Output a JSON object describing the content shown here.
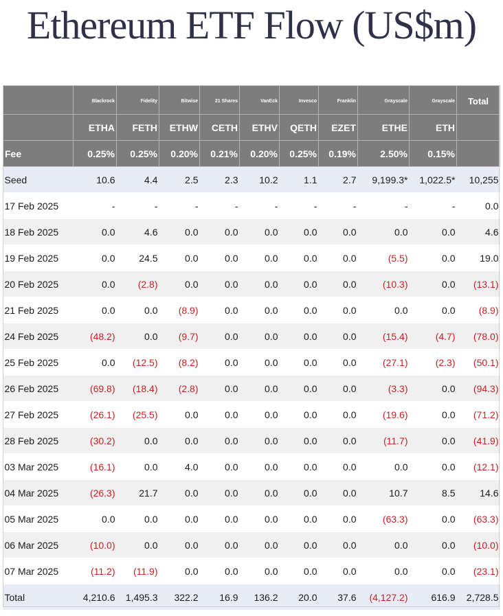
{
  "title": "Ethereum ETF Flow (US$m)",
  "colors": {
    "header_bg": "#7d7d7d",
    "seed_bg": "#e8ecf6",
    "stripe_bg": "#f0f0f0",
    "negative": "#cc1f1f",
    "title": "#2e3148"
  },
  "header": {
    "issuers": [
      "Blackrock",
      "Fidelity",
      "Bitwise",
      "21 Shares",
      "VanEck",
      "Invesco",
      "Franklin",
      "Grayscale",
      "Grayscale"
    ],
    "total_label": "Total",
    "tickers": [
      "ETHA",
      "FETH",
      "ETHW",
      "CETH",
      "ETHV",
      "QETH",
      "EZET",
      "ETHE",
      "ETH"
    ],
    "fee_label": "Fee",
    "fees": [
      "0.25%",
      "0.25%",
      "0.20%",
      "0.21%",
      "0.20%",
      "0.25%",
      "0.19%",
      "2.50%",
      "0.15%"
    ]
  },
  "seed": {
    "label": "Seed",
    "values": [
      "10.6",
      "4.4",
      "2.5",
      "2.3",
      "10.2",
      "1.1",
      "2.7",
      "9,199.3*",
      "1,022.5*",
      "10,255"
    ]
  },
  "rows": [
    {
      "date": "17 Feb 2025",
      "values": [
        "-",
        "-",
        "-",
        "-",
        "-",
        "-",
        "-",
        "-",
        "-",
        "0.0"
      ]
    },
    {
      "date": "18 Feb 2025",
      "values": [
        "0.0",
        "4.6",
        "0.0",
        "0.0",
        "0.0",
        "0.0",
        "0.0",
        "0.0",
        "0.0",
        "4.6"
      ]
    },
    {
      "date": "19 Feb 2025",
      "values": [
        "0.0",
        "24.5",
        "0.0",
        "0.0",
        "0.0",
        "0.0",
        "0.0",
        "(5.5)",
        "0.0",
        "19.0"
      ]
    },
    {
      "date": "20 Feb 2025",
      "values": [
        "0.0",
        "(2.8)",
        "0.0",
        "0.0",
        "0.0",
        "0.0",
        "0.0",
        "(10.3)",
        "0.0",
        "(13.1)"
      ]
    },
    {
      "date": "21 Feb 2025",
      "values": [
        "0.0",
        "0.0",
        "(8.9)",
        "0.0",
        "0.0",
        "0.0",
        "0.0",
        "0.0",
        "0.0",
        "(8.9)"
      ]
    },
    {
      "date": "24 Feb 2025",
      "values": [
        "(48.2)",
        "0.0",
        "(9.7)",
        "0.0",
        "0.0",
        "0.0",
        "0.0",
        "(15.4)",
        "(4.7)",
        "(78.0)"
      ]
    },
    {
      "date": "25 Feb 2025",
      "values": [
        "0.0",
        "(12.5)",
        "(8.2)",
        "0.0",
        "0.0",
        "0.0",
        "0.0",
        "(27.1)",
        "(2.3)",
        "(50.1)"
      ]
    },
    {
      "date": "26 Feb 2025",
      "values": [
        "(69.8)",
        "(18.4)",
        "(2.8)",
        "0.0",
        "0.0",
        "0.0",
        "0.0",
        "(3.3)",
        "0.0",
        "(94.3)"
      ]
    },
    {
      "date": "27 Feb 2025",
      "values": [
        "(26.1)",
        "(25.5)",
        "0.0",
        "0.0",
        "0.0",
        "0.0",
        "0.0",
        "(19.6)",
        "0.0",
        "(71.2)"
      ]
    },
    {
      "date": "28 Feb 2025",
      "values": [
        "(30.2)",
        "0.0",
        "0.0",
        "0.0",
        "0.0",
        "0.0",
        "0.0",
        "(11.7)",
        "0.0",
        "(41.9)"
      ]
    },
    {
      "date": "03 Mar 2025",
      "values": [
        "(16.1)",
        "0.0",
        "4.0",
        "0.0",
        "0.0",
        "0.0",
        "0.0",
        "0.0",
        "0.0",
        "(12.1)"
      ]
    },
    {
      "date": "04 Mar 2025",
      "values": [
        "(26.3)",
        "21.7",
        "0.0",
        "0.0",
        "0.0",
        "0.0",
        "0.0",
        "10.7",
        "8.5",
        "14.6"
      ]
    },
    {
      "date": "05 Mar 2025",
      "values": [
        "0.0",
        "0.0",
        "0.0",
        "0.0",
        "0.0",
        "0.0",
        "0.0",
        "(63.3)",
        "0.0",
        "(63.3)"
      ]
    },
    {
      "date": "06 Mar 2025",
      "values": [
        "(10.0)",
        "0.0",
        "0.0",
        "0.0",
        "0.0",
        "0.0",
        "0.0",
        "0.0",
        "0.0",
        "(10.0)"
      ]
    },
    {
      "date": "07 Mar 2025",
      "values": [
        "(11.2)",
        "(11.9)",
        "0.0",
        "0.0",
        "0.0",
        "0.0",
        "0.0",
        "0.0",
        "0.0",
        "(23.1)"
      ]
    }
  ],
  "total": {
    "label": "Total",
    "values": [
      "4,210.6",
      "1,495.3",
      "322.2",
      "16.9",
      "136.2",
      "20.0",
      "37.6",
      "(4,127.2)",
      "616.9",
      "2,728.5"
    ]
  }
}
